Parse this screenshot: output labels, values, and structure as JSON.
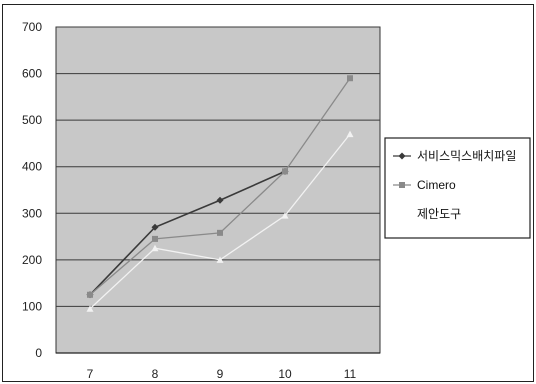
{
  "chart_data": {
    "type": "line",
    "categories": [
      "7",
      "8",
      "9",
      "10",
      "11"
    ],
    "ylim": [
      0,
      700
    ],
    "yticks": [
      0,
      100,
      200,
      300,
      400,
      500,
      600,
      700
    ],
    "grid": true,
    "legend_position": "right",
    "plot_background": "#c8c8c8",
    "series": [
      {
        "name": "서비스믹스배치파일",
        "color": "#3a3a3a",
        "marker": "diamond",
        "values": [
          125,
          270,
          328,
          390,
          null
        ]
      },
      {
        "name": "Cimero",
        "color": "#8a8a8a",
        "marker": "square",
        "values": [
          125,
          245,
          258,
          390,
          590
        ]
      },
      {
        "name": "제안도구",
        "color": "#f2f2f2",
        "marker": "triangle",
        "values": [
          95,
          225,
          200,
          295,
          470
        ]
      }
    ]
  }
}
